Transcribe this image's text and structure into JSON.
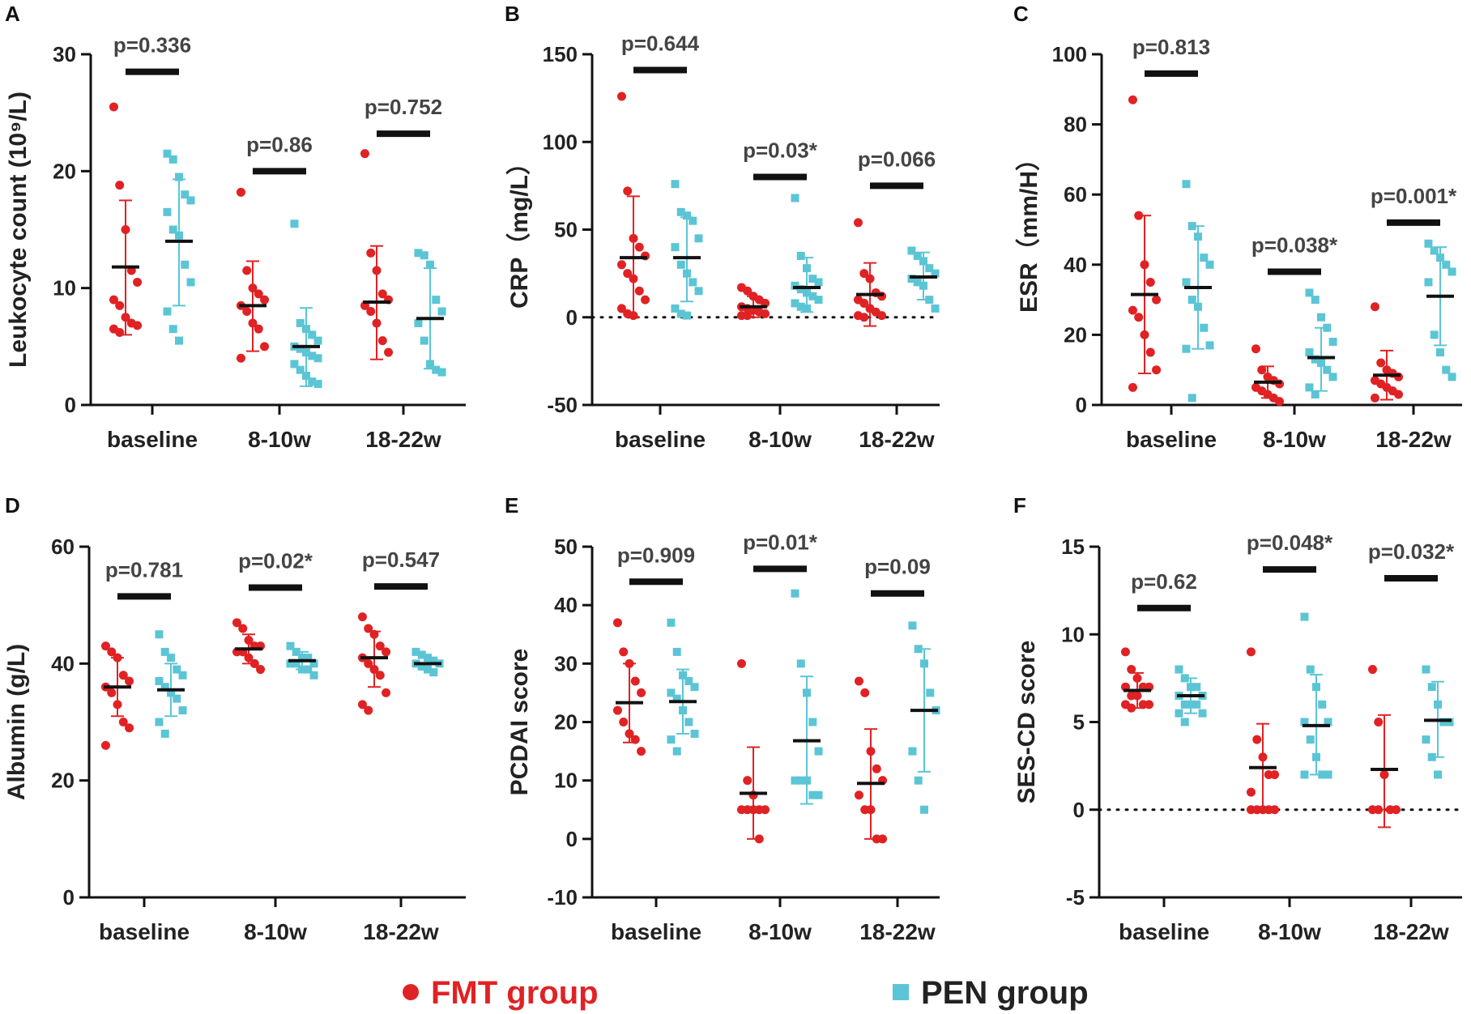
{
  "colors": {
    "fmt": "#e02224",
    "pen": "#5bc5d5",
    "axis": "#111111",
    "mean": "#111111"
  },
  "legend": [
    {
      "key": "fmt",
      "label": "FMT group",
      "marker": "circle"
    },
    {
      "key": "pen",
      "label": "PEN group",
      "marker": "square"
    }
  ],
  "chart_data": [
    {
      "panel": "A",
      "type": "scatter",
      "ylabel": "Leukocyte count (10⁹/L)",
      "ylim": [
        0,
        30
      ],
      "yticks": [
        0,
        10,
        20,
        30
      ],
      "zero_line": false,
      "categories": [
        "baseline",
        "8-10w",
        "18-22w"
      ],
      "pvalues": [
        {
          "label": "p=0.336",
          "bar_y": 28.5
        },
        {
          "label": "p=0.86",
          "bar_y": 20
        },
        {
          "label": "p=0.752",
          "bar_y": 23.2
        }
      ],
      "series": [
        {
          "name": "FMT group",
          "groups": [
            {
              "points": [
                25.5,
                18.8,
                15,
                11.5,
                10.5,
                9,
                8.5,
                7.5,
                7,
                6.8,
                6.5,
                6.2
              ],
              "mean": 11.8,
              "sd_low": 6.0,
              "sd_high": 17.5
            },
            {
              "points": [
                18.2,
                11.5,
                10,
                9.5,
                9,
                8.5,
                8,
                7,
                6.5,
                5,
                4
              ],
              "mean": 8.5,
              "sd_low": 4.6,
              "sd_high": 12.3
            },
            {
              "points": [
                21.5,
                13,
                11.5,
                9.5,
                9,
                8.5,
                8,
                7,
                5.5,
                4.5
              ],
              "mean": 8.8,
              "sd_low": 3.9,
              "sd_high": 13.6
            }
          ]
        },
        {
          "name": "PEN group",
          "groups": [
            {
              "points": [
                21.5,
                21,
                19.5,
                18,
                17.5,
                16.5,
                15,
                14.5,
                12,
                10.5,
                8,
                6.5,
                5.5
              ],
              "mean": 14.0,
              "sd_low": 8.5,
              "sd_high": 19.3
            },
            {
              "points": [
                15.5,
                7,
                6.5,
                6,
                5.5,
                5,
                4.8,
                4.5,
                4.2,
                4,
                3.5,
                3,
                2.5,
                2,
                1.8
              ],
              "mean": 5.0,
              "sd_low": 1.6,
              "sd_high": 8.3
            },
            {
              "points": [
                13,
                12.8,
                12,
                9,
                8,
                7,
                5.5,
                3.5,
                3,
                2.8
              ],
              "mean": 7.4,
              "sd_low": 3.1,
              "sd_high": 11.7
            }
          ]
        }
      ]
    },
    {
      "panel": "B",
      "type": "scatter",
      "ylabel": "CRP（mg/L）",
      "ylim": [
        -50,
        150
      ],
      "yticks": [
        -50,
        0,
        50,
        100,
        150
      ],
      "zero_line": true,
      "categories": [
        "baseline",
        "8-10w",
        "18-22w"
      ],
      "pvalues": [
        {
          "label": "p=0.644",
          "bar_y": 141
        },
        {
          "label": "p=0.03*",
          "bar_y": 80
        },
        {
          "label": "p=0.066",
          "bar_y": 75
        }
      ],
      "series": [
        {
          "name": "FMT group",
          "groups": [
            {
              "points": [
                126,
                72,
                45,
                40,
                35,
                30,
                25,
                22,
                15,
                10,
                5,
                2,
                1
              ],
              "mean": 34,
              "sd_low": 0,
              "sd_high": 69
            },
            {
              "points": [
                17,
                15,
                12,
                10,
                8,
                6,
                5,
                4,
                3,
                2,
                1,
                1
              ],
              "mean": 6,
              "sd_low": 0,
              "sd_high": 12
            },
            {
              "points": [
                54,
                25,
                22,
                14,
                12,
                10,
                8,
                5,
                3,
                1,
                1,
                0
              ],
              "mean": 13,
              "sd_low": -5,
              "sd_high": 31
            }
          ]
        },
        {
          "name": "PEN group",
          "groups": [
            {
              "points": [
                76,
                60,
                58,
                55,
                45,
                40,
                30,
                25,
                20,
                15,
                5,
                2,
                1
              ],
              "mean": 34,
              "sd_low": 9,
              "sd_high": 57
            },
            {
              "points": [
                68,
                35,
                28,
                22,
                20,
                18,
                16,
                14,
                12,
                10,
                8,
                6,
                5
              ],
              "mean": 17,
              "sd_low": 3,
              "sd_high": 34
            },
            {
              "points": [
                38,
                35,
                32,
                28,
                25,
                22,
                20,
                18,
                10,
                5
              ],
              "mean": 23,
              "sd_low": 10,
              "sd_high": 37
            }
          ]
        }
      ]
    },
    {
      "panel": "C",
      "type": "scatter",
      "ylabel": "ESR（mm/H）",
      "ylim": [
        0,
        100
      ],
      "yticks": [
        0,
        20,
        40,
        60,
        80,
        100
      ],
      "zero_line": false,
      "categories": [
        "baseline",
        "8-10w",
        "18-22w"
      ],
      "pvalues": [
        {
          "label": "p=0.813",
          "bar_y": 94.5
        },
        {
          "label": "p=0.038*",
          "bar_y": 38
        },
        {
          "label": "p=0.001*",
          "bar_y": 52
        }
      ],
      "series": [
        {
          "name": "FMT group",
          "groups": [
            {
              "points": [
                87,
                54,
                40,
                35,
                30,
                27,
                25,
                20,
                15,
                10,
                5
              ],
              "mean": 31.5,
              "sd_low": 9,
              "sd_high": 54
            },
            {
              "points": [
                16,
                10,
                8,
                7,
                6,
                5,
                4,
                3,
                2,
                1
              ],
              "mean": 6.5,
              "sd_low": 2,
              "sd_high": 11
            },
            {
              "points": [
                28,
                12,
                10,
                9,
                8,
                7,
                6,
                5,
                4,
                3,
                2
              ],
              "mean": 8.5,
              "sd_low": 1.5,
              "sd_high": 15.5
            }
          ]
        },
        {
          "name": "PEN group",
          "groups": [
            {
              "points": [
                63,
                51,
                48,
                42,
                40,
                35,
                30,
                28,
                22,
                17,
                16,
                2
              ],
              "mean": 33.5,
              "sd_low": 16,
              "sd_high": 51
            },
            {
              "points": [
                32,
                30,
                25,
                22,
                18,
                15,
                13,
                12,
                10,
                8,
                5,
                3
              ],
              "mean": 13.5,
              "sd_low": 4,
              "sd_high": 22
            },
            {
              "points": [
                46,
                44,
                42,
                40,
                38,
                35,
                20,
                15,
                10,
                8
              ],
              "mean": 31,
              "sd_low": 17,
              "sd_high": 45
            }
          ]
        }
      ]
    },
    {
      "panel": "D",
      "type": "scatter",
      "ylabel": "Albumin (g/L)",
      "ylim": [
        0,
        60
      ],
      "yticks": [
        0,
        20,
        40,
        60
      ],
      "zero_line": false,
      "categories": [
        "baseline",
        "8-10w",
        "18-22w"
      ],
      "pvalues": [
        {
          "label": "p=0.781",
          "bar_y": 51.5
        },
        {
          "label": "p=0.02*",
          "bar_y": 53
        },
        {
          "label": "p=0.547",
          "bar_y": 53.2
        }
      ],
      "series": [
        {
          "name": "FMT group",
          "groups": [
            {
              "points": [
                43,
                42,
                41,
                38,
                37,
                36,
                35,
                33,
                30,
                29,
                26
              ],
              "mean": 36,
              "sd_low": 31,
              "sd_high": 41
            },
            {
              "points": [
                47,
                46,
                44,
                43,
                43,
                42,
                42,
                41,
                40,
                39
              ],
              "mean": 42.5,
              "sd_low": 40,
              "sd_high": 45
            },
            {
              "points": [
                48,
                46,
                45,
                43,
                42,
                41,
                40,
                39,
                38,
                35,
                33,
                32
              ],
              "mean": 41,
              "sd_low": 36,
              "sd_high": 45.5
            }
          ]
        },
        {
          "name": "PEN group",
          "groups": [
            {
              "points": [
                45,
                42,
                41,
                39,
                38,
                37,
                36,
                35,
                34,
                32,
                30,
                28
              ],
              "mean": 35.5,
              "sd_low": 31,
              "sd_high": 40
            },
            {
              "points": [
                43,
                42,
                41,
                41,
                40,
                40,
                40,
                39,
                39,
                38
              ],
              "mean": 40.5,
              "sd_low": 39,
              "sd_high": 42
            },
            {
              "points": [
                42,
                41.5,
                41,
                40.5,
                40,
                40,
                39.5,
                39,
                38.5
              ],
              "mean": 40,
              "sd_low": 39,
              "sd_high": 41
            }
          ]
        }
      ]
    },
    {
      "panel": "E",
      "type": "scatter",
      "ylabel": "PCDAI score",
      "ylim": [
        -10,
        50
      ],
      "yticks": [
        -10,
        0,
        10,
        20,
        30,
        40,
        50
      ],
      "zero_line": false,
      "categories": [
        "baseline",
        "8-10w",
        "18-22w"
      ],
      "pvalues": [
        {
          "label": "p=0.909",
          "bar_y": 44
        },
        {
          "label": "p=0.01*",
          "bar_y": 46.2
        },
        {
          "label": "p=0.09",
          "bar_y": 42
        }
      ],
      "series": [
        {
          "name": "FMT group",
          "groups": [
            {
              "points": [
                37,
                32,
                30,
                27,
                25,
                22,
                20,
                18,
                17,
                15
              ],
              "mean": 23.3,
              "sd_low": 16.5,
              "sd_high": 30
            },
            {
              "points": [
                30,
                10,
                7.5,
                5,
                5,
                5,
                5,
                5,
                0
              ],
              "mean": 7.8,
              "sd_low": 0,
              "sd_high": 15.7
            },
            {
              "points": [
                27,
                25,
                15,
                12,
                10,
                7.5,
                5,
                5,
                0,
                0
              ],
              "mean": 9.5,
              "sd_low": 0,
              "sd_high": 18.8
            }
          ]
        },
        {
          "name": "PEN group",
          "groups": [
            {
              "points": [
                37,
                32,
                28,
                27,
                26,
                25,
                24,
                22,
                20,
                18,
                17,
                15
              ],
              "mean": 23.5,
              "sd_low": 18,
              "sd_high": 29
            },
            {
              "points": [
                42,
                30,
                25,
                20,
                15,
                10,
                10,
                10,
                7.5,
                7.5
              ],
              "mean": 16.8,
              "sd_low": 6,
              "sd_high": 27.8
            },
            {
              "points": [
                36.5,
                32.5,
                30,
                25,
                22,
                15,
                10,
                5
              ],
              "mean": 22,
              "sd_low": 11.5,
              "sd_high": 32.5
            }
          ]
        }
      ]
    },
    {
      "panel": "F",
      "type": "scatter",
      "ylabel": "SES-CD score",
      "ylim": [
        -5,
        15
      ],
      "yticks": [
        -5,
        0,
        5,
        10,
        15
      ],
      "zero_line": true,
      "categories": [
        "baseline",
        "8-10w",
        "18-22w"
      ],
      "pvalues": [
        {
          "label": "p=0.62",
          "bar_y": 11.5
        },
        {
          "label": "p=0.048*",
          "bar_y": 13.7
        },
        {
          "label": "p=0.032*",
          "bar_y": 13.2
        }
      ],
      "series": [
        {
          "name": "FMT group",
          "groups": [
            {
              "points": [
                9,
                8,
                7.5,
                7,
                7,
                7,
                6.5,
                6.5,
                6,
                6,
                6,
                5.8
              ],
              "mean": 6.8,
              "sd_low": 5.8,
              "sd_high": 7.8
            },
            {
              "points": [
                9,
                4,
                3,
                2,
                2,
                1,
                0,
                0,
                0,
                0,
                0
              ],
              "mean": 2.4,
              "sd_low": 0,
              "sd_high": 4.9
            },
            {
              "points": [
                8,
                5,
                2,
                0,
                0,
                0,
                0
              ],
              "mean": 2.3,
              "sd_low": -1,
              "sd_high": 5.4
            }
          ]
        },
        {
          "name": "PEN group",
          "groups": [
            {
              "points": [
                8,
                7.5,
                7,
                7,
                6.5,
                6.5,
                6,
                6,
                6,
                5.5,
                5.5,
                5
              ],
              "mean": 6.5,
              "sd_low": 5.5,
              "sd_high": 7.5
            },
            {
              "points": [
                11,
                8,
                7,
                6,
                5,
                5,
                4,
                3,
                2,
                2,
                2
              ],
              "mean": 4.8,
              "sd_low": 2,
              "sd_high": 7.7
            },
            {
              "points": [
                8,
                7,
                6,
                5,
                5,
                4,
                3,
                2
              ],
              "mean": 5.1,
              "sd_low": 3,
              "sd_high": 7.3
            }
          ]
        }
      ]
    }
  ]
}
